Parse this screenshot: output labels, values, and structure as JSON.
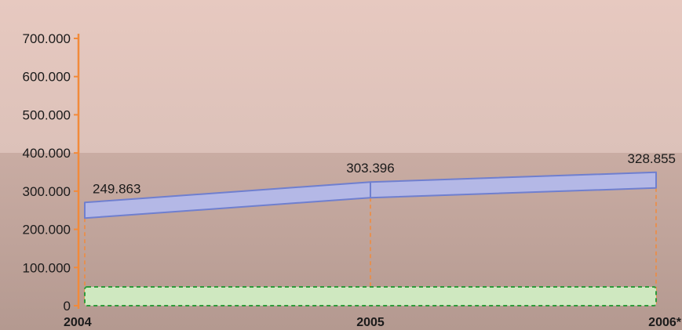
{
  "chart_data": {
    "type": "line",
    "categories": [
      "2004",
      "2005",
      "2006*"
    ],
    "series": [
      {
        "values": [
          249863,
          303396,
          328855
        ]
      }
    ],
    "data_labels": [
      "249.863",
      "303.396",
      "328.855"
    ],
    "y_ticks": [
      "0",
      "100.000",
      "200.000",
      "300.000",
      "400.000",
      "500.000",
      "600.000",
      "700.000"
    ],
    "ylim": [
      0,
      700000
    ],
    "grid": false,
    "colors": {
      "axis": "#f28a3a",
      "series_fill": "#b4b8e6",
      "series_stroke": "#6f7fcf",
      "baseline_fill": "#cfe8c0",
      "baseline_stroke": "#2f9a3a",
      "guide": "#f28a3a"
    }
  }
}
